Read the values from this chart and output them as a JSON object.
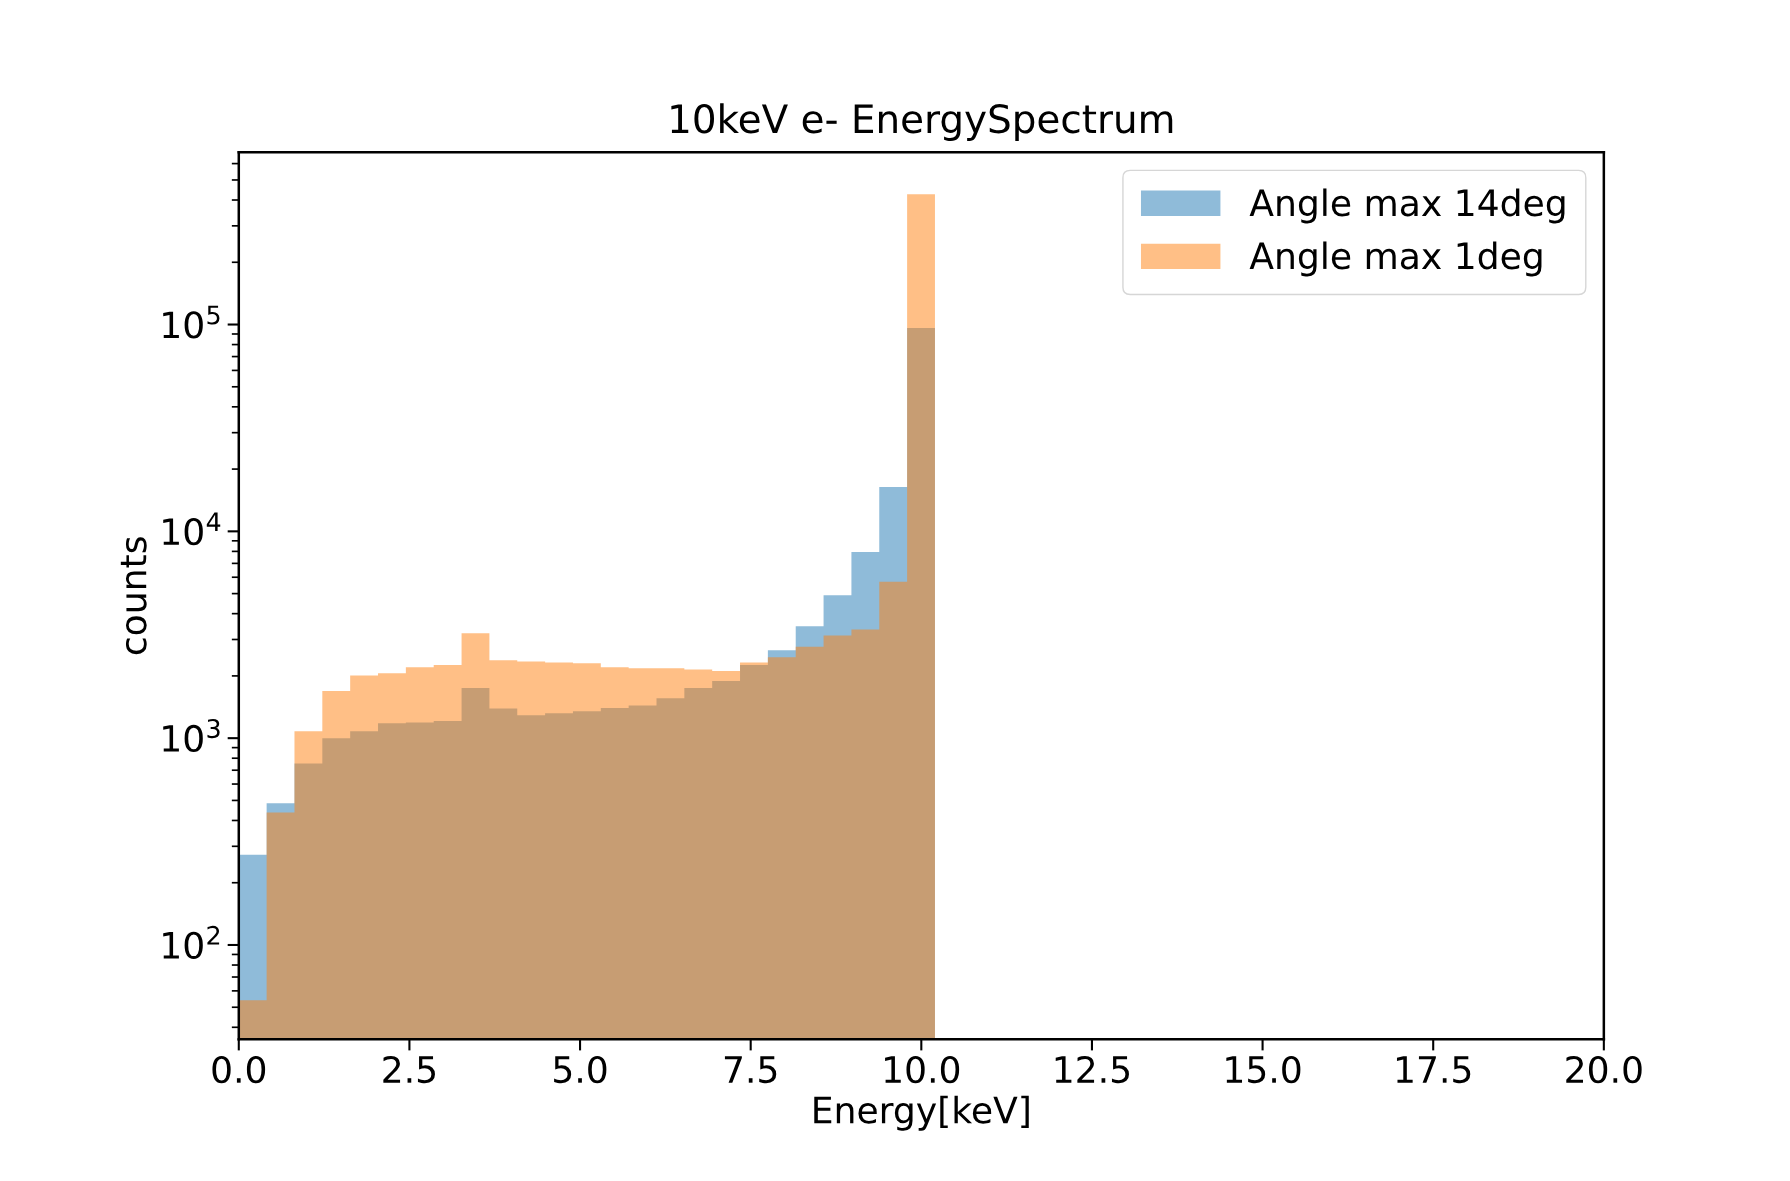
{
  "chart_data": {
    "type": "histogram",
    "title": "10keV e- EnergySpectrum",
    "xlabel": "Energy[keV]",
    "ylabel": "counts",
    "bins": [
      0,
      0.408,
      0.816,
      1.224,
      1.632,
      2.04,
      2.448,
      2.856,
      3.264,
      3.672,
      4.08,
      4.488,
      4.896,
      5.304,
      5.712,
      6.12,
      6.528,
      6.936,
      7.344,
      7.752,
      8.16,
      8.568,
      8.976,
      9.384,
      9.792,
      10.2
    ],
    "series": [
      {
        "name": "Angle max 14deg",
        "color": "#1f77b4",
        "values": [
          273,
          484,
          755,
          1000,
          1080,
          1180,
          1190,
          1210,
          1750,
          1390,
          1290,
          1320,
          1350,
          1400,
          1440,
          1560,
          1750,
          1890,
          2260,
          2660,
          3480,
          4910,
          7940,
          16400,
          96100
        ]
      },
      {
        "name": "Angle max 1deg",
        "color": "#ff7f0e",
        "values": [
          54,
          437,
          1080,
          1690,
          2010,
          2060,
          2200,
          2260,
          3220,
          2380,
          2350,
          2320,
          2300,
          2200,
          2180,
          2180,
          2150,
          2110,
          2320,
          2460,
          2770,
          3140,
          3350,
          5710,
          427000
        ]
      }
    ],
    "log": "y",
    "xlim": [
      0,
      20
    ],
    "xticks": [
      {
        "value": 0,
        "label": "0.0"
      },
      2.5,
      {
        "value": 5,
        "label": "5.0"
      },
      7.5,
      {
        "value": 10,
        "label": "10.0"
      },
      12.5,
      {
        "value": 15,
        "label": "15.0"
      },
      17.5,
      {
        "value": 20,
        "label": "20.0"
      }
    ],
    "ylim": [
      35,
      680000
    ],
    "yticks": [
      {
        "value": 100,
        "label": "10$^{2}$"
      },
      {
        "value": 1000,
        "label": "10$^{3}$"
      },
      {
        "value": 10000,
        "label": "10$^{4}$"
      },
      {
        "value": 100000,
        "label": "10$^{5}$"
      }
    ],
    "legend": "top right",
    "grid": false
  }
}
